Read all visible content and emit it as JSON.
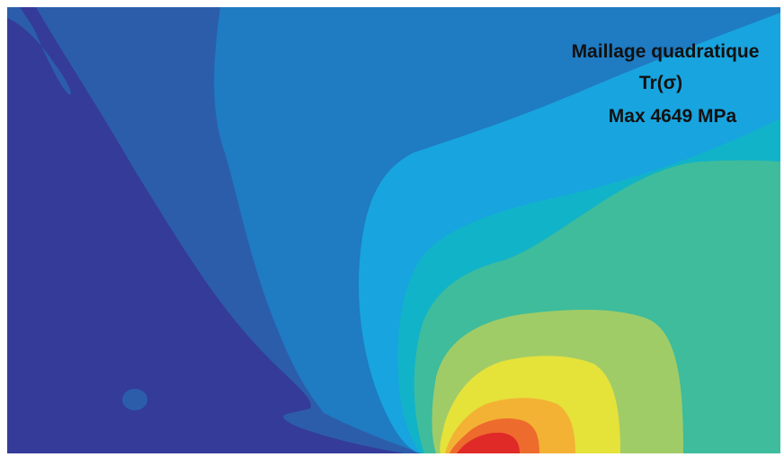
{
  "annotation": {
    "lines": [
      "Maillage quadratique",
      "Tr(σ)",
      "Max 4649 MPa"
    ]
  }
}
